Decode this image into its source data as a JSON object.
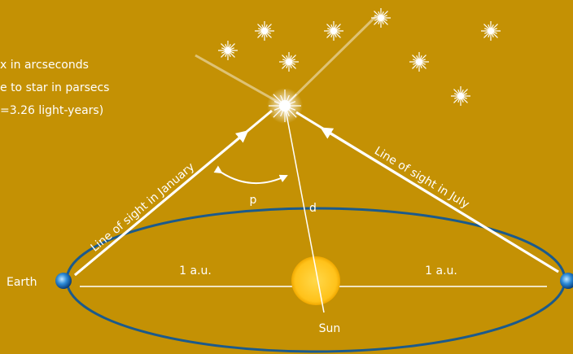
{
  "legend": [
    "x in arcseconds",
    "e to star in parsecs",
    "=3.26 light-years)"
  ],
  "labels": {
    "january": "Line of sight in January",
    "july": "Line of sight in July",
    "parallax": "p",
    "distance": "d",
    "au_left": "1 a.u.",
    "au_right": "1 a.u.",
    "earth": "Earth",
    "sun": "Sun"
  }
}
